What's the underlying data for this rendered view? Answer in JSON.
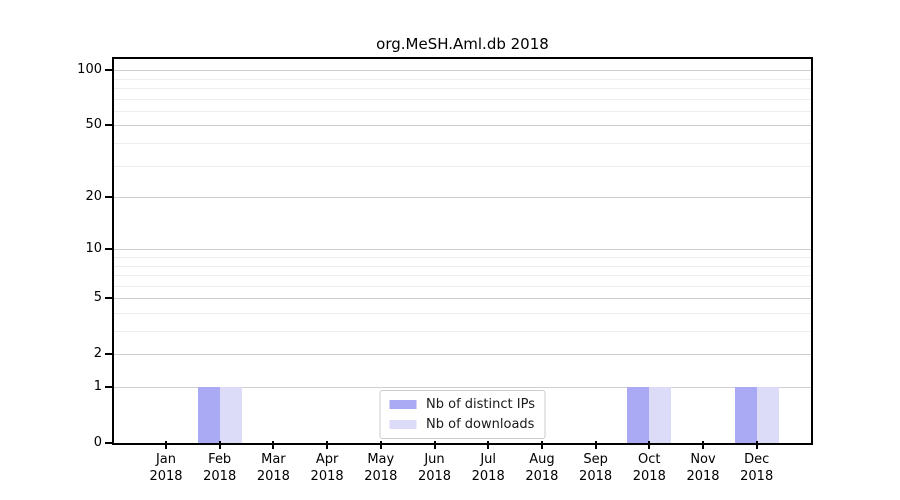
{
  "title": "org.MeSH.Aml.db 2018",
  "colors": {
    "distinct_ips": "#a9a9f4",
    "downloads": "#dcdcf8",
    "grid_major": "#cfcfcf",
    "grid_minor": "#ededed",
    "axis": "#000000",
    "legend_border": "#cccccc",
    "background": "#ffffff"
  },
  "legend": {
    "items": [
      {
        "label": "Nb of distinct IPs",
        "color_key": "distinct_ips"
      },
      {
        "label": "Nb of downloads",
        "color_key": "downloads"
      }
    ]
  },
  "chart_data": {
    "type": "bar",
    "title": "org.MeSH.Aml.db 2018",
    "months": [
      "Jan",
      "Feb",
      "Mar",
      "Apr",
      "May",
      "Jun",
      "Jul",
      "Aug",
      "Sep",
      "Oct",
      "Nov",
      "Dec"
    ],
    "year": "2018",
    "categories": [
      "Jan 2018",
      "Feb 2018",
      "Mar 2018",
      "Apr 2018",
      "May 2018",
      "Jun 2018",
      "Jul 2018",
      "Aug 2018",
      "Sep 2018",
      "Oct 2018",
      "Nov 2018",
      "Dec 2018"
    ],
    "series": [
      {
        "name": "Nb of distinct IPs",
        "color_key": "distinct_ips",
        "values": [
          0,
          1,
          0,
          0,
          0,
          0,
          0,
          0,
          0,
          1,
          0,
          1
        ]
      },
      {
        "name": "Nb of downloads",
        "color_key": "downloads",
        "values": [
          0,
          1,
          0,
          0,
          0,
          0,
          0,
          0,
          0,
          1,
          0,
          1
        ]
      }
    ],
    "xlabel": "",
    "ylabel": "",
    "y_scale": "log1p",
    "ylim": [
      0,
      115
    ],
    "y_ticks": [
      0,
      1,
      2,
      5,
      10,
      20,
      50,
      100
    ],
    "y_minor_gridlines": [
      3,
      4,
      6,
      7,
      8,
      9,
      30,
      40,
      60,
      70,
      80,
      90
    ],
    "grid": "horizontal",
    "legend_position": "bottom-center"
  }
}
